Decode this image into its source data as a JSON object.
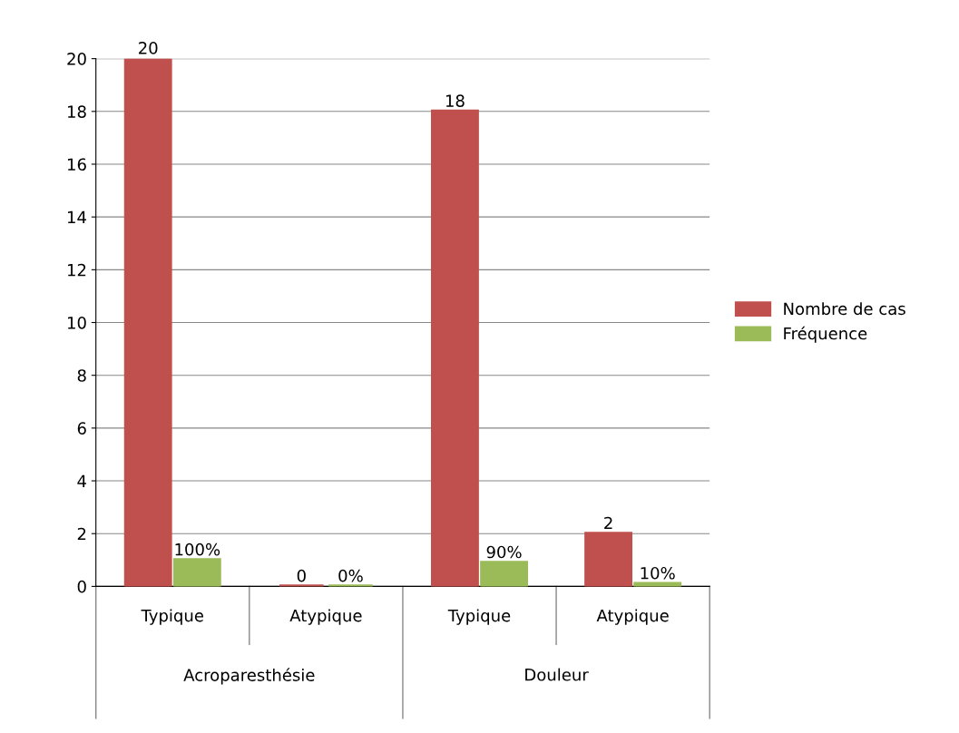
{
  "chart_data": {
    "type": "bar",
    "categories": [
      "Typique",
      "Atypique",
      "Typique",
      "Atypique"
    ],
    "series": [
      {
        "name": "Nombre de cas",
        "color": "#c0504d",
        "values": [
          20,
          0,
          18,
          2
        ],
        "value_labels": [
          "20",
          "0",
          "18",
          "2"
        ]
      },
      {
        "name": "Fréquence",
        "color": "#9bbb59",
        "values": [
          1,
          0,
          0.9,
          0.1
        ],
        "value_labels": [
          "100%",
          "0%",
          "90%",
          "10%"
        ]
      }
    ],
    "annotations": [
      "Acroparesthésie",
      "Douleur"
    ],
    "ylim": [
      0,
      20
    ],
    "yticks": [
      0,
      2,
      4,
      6,
      8,
      10,
      12,
      14,
      16,
      18,
      20
    ],
    "grid": "y",
    "legend": "right"
  }
}
